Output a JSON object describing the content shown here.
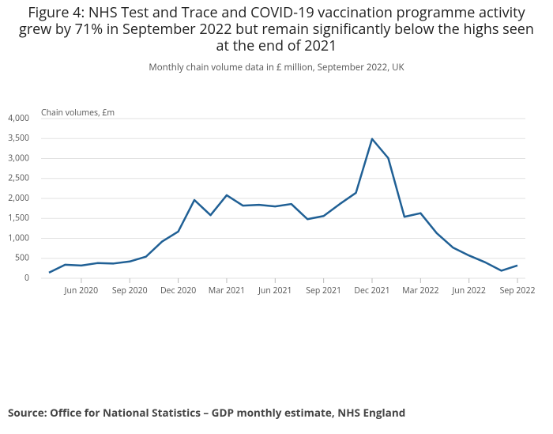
{
  "chart_data": {
    "type": "line",
    "title": "Figure 4: NHS Test and Trace and COVID-19 vaccination programme activity grew by 71% in September 2022 but remain significantly below the highs seen at the end of 2021",
    "subtitle": "Monthly chain volume data in £ million, September 2022, UK",
    "y_label": "Chain volumes, £m",
    "source": "Source: Office for National Statistics – GDP monthly estimate, NHS England",
    "categories": [
      null,
      null,
      "Jun 2020",
      null,
      null,
      "Sep 2020",
      null,
      null,
      "Dec 2020",
      null,
      null,
      "Mar 2021",
      null,
      null,
      "Jun 2021",
      null,
      null,
      "Sep 2021",
      null,
      null,
      "Dec 2021",
      null,
      null,
      "Mar 2022",
      null,
      null,
      "Jun 2022",
      null,
      null,
      "Sep 2022"
    ],
    "series": [
      {
        "name": "Chain volumes",
        "color": "#206095",
        "values": [
          140,
          340,
          320,
          380,
          370,
          420,
          540,
          920,
          1170,
          1960,
          1580,
          2080,
          1820,
          1840,
          1800,
          1860,
          1480,
          1560,
          1860,
          2140,
          3490,
          3010,
          1540,
          1630,
          1130,
          770,
          570,
          400,
          190,
          320
        ]
      }
    ],
    "ylim": [
      0,
      4000
    ],
    "yticks": [
      0,
      500,
      {
        "value": 1000,
        "label": "1,000"
      },
      {
        "value": 1500,
        "label": "1,500"
      },
      {
        "value": 2000,
        "label": "2,000"
      },
      {
        "value": 2500,
        "label": "2,500"
      },
      {
        "value": 3000,
        "label": "3,000"
      },
      {
        "value": 3500,
        "label": "3,500"
      },
      {
        "value": 4000,
        "label": "4,000"
      }
    ],
    "grid": true
  }
}
